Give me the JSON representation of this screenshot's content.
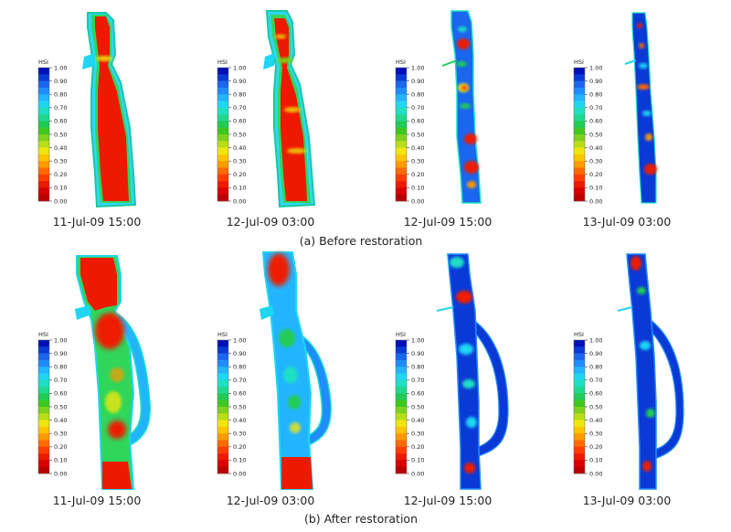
{
  "legend": {
    "title": "HSI",
    "ticks": [
      "1.00",
      "0.90",
      "0.80",
      "0.70",
      "0.60",
      "0.50",
      "0.40",
      "0.30",
      "0.20",
      "0.10",
      "0.00"
    ],
    "colors": [
      "#0010b8",
      "#0a3ad6",
      "#1a66ee",
      "#1f8cff",
      "#22b5ff",
      "#1fd6f2",
      "#1ee0c3",
      "#1fd98f",
      "#20cc55",
      "#3dc81f",
      "#7dd21c",
      "#b7de16",
      "#f0e60f",
      "#ffc400",
      "#ff9a00",
      "#ff6a00",
      "#ff3c00",
      "#ee1a00",
      "#d90000",
      "#bb0000"
    ]
  },
  "panels": {
    "before": {
      "caption": "(a) Before restoration",
      "maps": [
        {
          "date": "11-Jul-09 15:00"
        },
        {
          "date": "12-Jul-09 03:00"
        },
        {
          "date": "12-Jul-09 15:00"
        },
        {
          "date": "13-Jul-09 03:00"
        }
      ]
    },
    "after": {
      "caption": "(b) After restoration",
      "maps": [
        {
          "date": "11-Jul-09 15:00"
        },
        {
          "date": "12-Jul-09 03:00"
        },
        {
          "date": "12-Jul-09 15:00"
        },
        {
          "date": "13-Jul-09 03:00"
        }
      ]
    }
  }
}
